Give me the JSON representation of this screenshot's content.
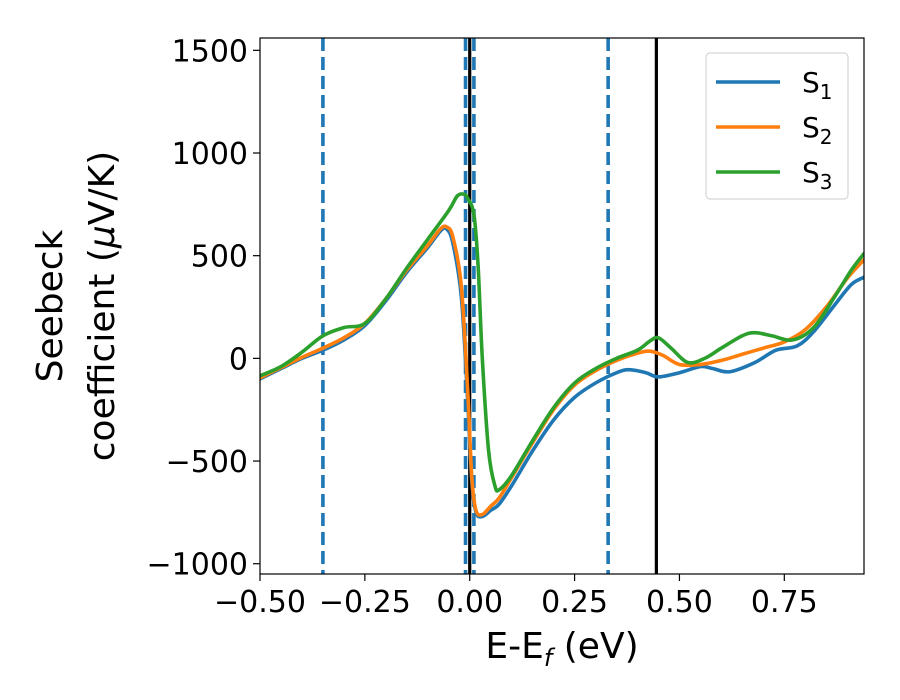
{
  "chart_data": {
    "type": "line",
    "title": "",
    "xlabel": {
      "main": "E-E",
      "sub": "f",
      "unit": " (eV)"
    },
    "ylabel": {
      "line1": "Seebeck",
      "line2": "coefficient  (",
      "mu": "μ",
      "unit": "V/K)"
    },
    "xlim": [
      -0.5,
      0.94
    ],
    "ylim": [
      -1050,
      1560
    ],
    "xticks": [
      -0.5,
      -0.25,
      0.0,
      0.25,
      0.5,
      0.75
    ],
    "xtick_labels": [
      "−0.50",
      "−0.25",
      "0.00",
      "0.25",
      "0.50",
      "0.75"
    ],
    "yticks": [
      -1000,
      -500,
      0,
      500,
      1000,
      1500
    ],
    "ytick_labels": [
      "−1000",
      "−500",
      "0",
      "500",
      "1000",
      "1500"
    ],
    "grid": false,
    "legend_position": "top-right",
    "vlines": [
      {
        "x": -0.35,
        "style": "dashed",
        "color": "#1f77b4"
      },
      {
        "x": -0.01,
        "style": "dashed",
        "color": "#1f77b4"
      },
      {
        "x": 0.01,
        "style": "dashed",
        "color": "#1f77b4"
      },
      {
        "x": 0.33,
        "style": "dashed",
        "color": "#1f77b4"
      },
      {
        "x": 0.0,
        "style": "solid",
        "color": "#000000"
      },
      {
        "x": 0.445,
        "style": "solid",
        "color": "#000000"
      }
    ],
    "series": [
      {
        "name": "S",
        "sub": "1",
        "color": "#1f77b4",
        "points": [
          [
            -0.5,
            -100
          ],
          [
            -0.45,
            -50
          ],
          [
            -0.4,
            0
          ],
          [
            -0.35,
            40
          ],
          [
            -0.3,
            90
          ],
          [
            -0.25,
            160
          ],
          [
            -0.2,
            280
          ],
          [
            -0.15,
            420
          ],
          [
            -0.1,
            540
          ],
          [
            -0.07,
            620
          ],
          [
            -0.055,
            630
          ],
          [
            -0.04,
            560
          ],
          [
            -0.02,
            300
          ],
          [
            -0.005,
            -200
          ],
          [
            0.005,
            -600
          ],
          [
            0.015,
            -750
          ],
          [
            0.03,
            -770
          ],
          [
            0.05,
            -740
          ],
          [
            0.07,
            -710
          ],
          [
            0.1,
            -620
          ],
          [
            0.15,
            -450
          ],
          [
            0.2,
            -300
          ],
          [
            0.25,
            -190
          ],
          [
            0.3,
            -120
          ],
          [
            0.35,
            -70
          ],
          [
            0.38,
            -55
          ],
          [
            0.42,
            -70
          ],
          [
            0.45,
            -90
          ],
          [
            0.5,
            -70
          ],
          [
            0.55,
            -40
          ],
          [
            0.58,
            -50
          ],
          [
            0.62,
            -65
          ],
          [
            0.68,
            -20
          ],
          [
            0.73,
            40
          ],
          [
            0.78,
            60
          ],
          [
            0.82,
            130
          ],
          [
            0.87,
            260
          ],
          [
            0.91,
            360
          ],
          [
            0.94,
            395
          ]
        ]
      },
      {
        "name": "S",
        "sub": "2",
        "color": "#ff7f0e",
        "points": [
          [
            -0.5,
            -95
          ],
          [
            -0.45,
            -45
          ],
          [
            -0.4,
            5
          ],
          [
            -0.35,
            50
          ],
          [
            -0.3,
            100
          ],
          [
            -0.25,
            170
          ],
          [
            -0.2,
            290
          ],
          [
            -0.15,
            430
          ],
          [
            -0.1,
            550
          ],
          [
            -0.07,
            630
          ],
          [
            -0.055,
            640
          ],
          [
            -0.04,
            590
          ],
          [
            -0.02,
            350
          ],
          [
            -0.005,
            -150
          ],
          [
            0.005,
            -580
          ],
          [
            0.015,
            -740
          ],
          [
            0.03,
            -760
          ],
          [
            0.05,
            -720
          ],
          [
            0.07,
            -680
          ],
          [
            0.1,
            -580
          ],
          [
            0.15,
            -410
          ],
          [
            0.2,
            -250
          ],
          [
            0.25,
            -130
          ],
          [
            0.3,
            -60
          ],
          [
            0.35,
            -10
          ],
          [
            0.4,
            25
          ],
          [
            0.43,
            35
          ],
          [
            0.46,
            15
          ],
          [
            0.5,
            -30
          ],
          [
            0.55,
            -30
          ],
          [
            0.6,
            -10
          ],
          [
            0.65,
            20
          ],
          [
            0.7,
            50
          ],
          [
            0.75,
            80
          ],
          [
            0.8,
            140
          ],
          [
            0.85,
            250
          ],
          [
            0.9,
            390
          ],
          [
            0.94,
            480
          ]
        ]
      },
      {
        "name": "S",
        "sub": "3",
        "color": "#2ca02c",
        "points": [
          [
            -0.5,
            -85
          ],
          [
            -0.45,
            -40
          ],
          [
            -0.4,
            30
          ],
          [
            -0.35,
            110
          ],
          [
            -0.3,
            150
          ],
          [
            -0.25,
            170
          ],
          [
            -0.2,
            290
          ],
          [
            -0.15,
            440
          ],
          [
            -0.1,
            580
          ],
          [
            -0.05,
            720
          ],
          [
            -0.03,
            790
          ],
          [
            -0.015,
            800
          ],
          [
            -0.005,
            780
          ],
          [
            0.01,
            700
          ],
          [
            0.02,
            450
          ],
          [
            0.03,
            0
          ],
          [
            0.045,
            -450
          ],
          [
            0.06,
            -620
          ],
          [
            0.07,
            -640
          ],
          [
            0.1,
            -570
          ],
          [
            0.15,
            -400
          ],
          [
            0.2,
            -240
          ],
          [
            0.25,
            -120
          ],
          [
            0.3,
            -50
          ],
          [
            0.35,
            0
          ],
          [
            0.4,
            40
          ],
          [
            0.43,
            85
          ],
          [
            0.45,
            100
          ],
          [
            0.48,
            50
          ],
          [
            0.52,
            -20
          ],
          [
            0.56,
            0
          ],
          [
            0.6,
            50
          ],
          [
            0.65,
            110
          ],
          [
            0.68,
            125
          ],
          [
            0.72,
            110
          ],
          [
            0.77,
            90
          ],
          [
            0.82,
            150
          ],
          [
            0.87,
            300
          ],
          [
            0.91,
            430
          ],
          [
            0.94,
            510
          ]
        ]
      }
    ]
  }
}
